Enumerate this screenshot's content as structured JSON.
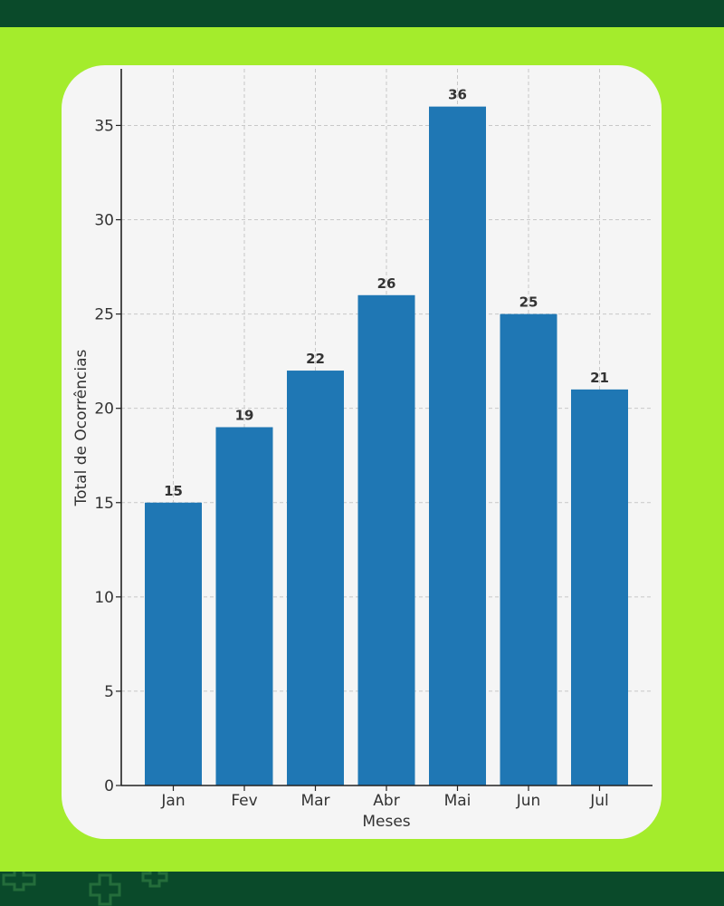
{
  "colors": {
    "page_background": "#a4ec2c",
    "band": "#0a4a2a",
    "card": "#f5f5f5",
    "bar": "#1f77b4",
    "grid": "#c8c8c8",
    "axis": "#222222",
    "text": "#333333"
  },
  "decor": {
    "footer_icon": "medical-cross-icon"
  },
  "chart_data": {
    "type": "bar",
    "title": "",
    "xlabel": "Meses",
    "ylabel": "Total de Ocorrências",
    "categories": [
      "Jan",
      "Fev",
      "Mar",
      "Abr",
      "Mai",
      "Jun",
      "Jul"
    ],
    "values": [
      15,
      19,
      22,
      26,
      36,
      25,
      21
    ],
    "data_labels": [
      "15",
      "19",
      "22",
      "26",
      "36",
      "25",
      "21"
    ],
    "ylim": [
      0,
      38
    ],
    "yticks": [
      0,
      5,
      10,
      15,
      20,
      25,
      30,
      35
    ],
    "ytick_labels": [
      "0",
      "5",
      "10",
      "15",
      "20",
      "25",
      "30",
      "35"
    ],
    "grid": true,
    "legend": "none"
  }
}
